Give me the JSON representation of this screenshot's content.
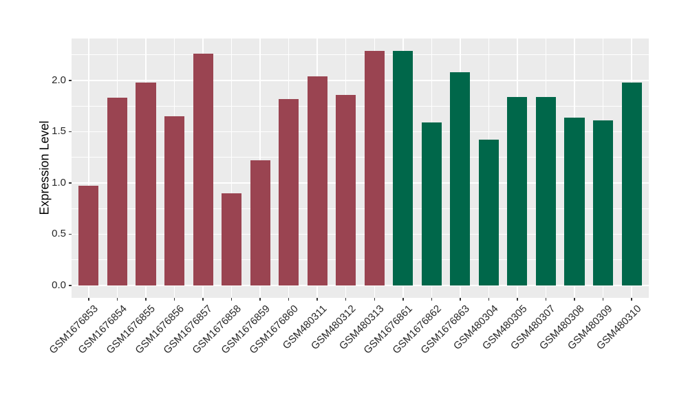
{
  "chart_data": {
    "type": "bar",
    "title": "",
    "xlabel": "",
    "ylabel": "Expression Level",
    "categories": [
      "GSM1676853",
      "GSM1676854",
      "GSM1676855",
      "GSM1676856",
      "GSM1676857",
      "GSM1676858",
      "GSM1676859",
      "GSM1676860",
      "GSM480311",
      "GSM480312",
      "GSM480313",
      "GSM1676861",
      "GSM1676862",
      "GSM1676863",
      "GSM480304",
      "GSM480305",
      "GSM480307",
      "GSM480308",
      "GSM480309",
      "GSM480310"
    ],
    "values": [
      0.97,
      1.83,
      1.98,
      1.65,
      2.26,
      0.9,
      1.22,
      1.82,
      2.04,
      1.86,
      2.29,
      2.29,
      1.59,
      2.08,
      1.42,
      1.84,
      1.84,
      1.64,
      1.61,
      1.98
    ],
    "bar_colors": [
      "#9A4451",
      "#9A4451",
      "#9A4451",
      "#9A4451",
      "#9A4451",
      "#9A4451",
      "#9A4451",
      "#9A4451",
      "#9A4451",
      "#9A4451",
      "#9A4451",
      "#00674A",
      "#00674A",
      "#00674A",
      "#00674A",
      "#00674A",
      "#00674A",
      "#00674A",
      "#00674A",
      "#00674A"
    ],
    "group_colors": {
      "group_1_color": "#9A4451",
      "group_2_color": "#00674A"
    },
    "yticks": [
      {
        "label": "0.0",
        "value": 0.0
      },
      {
        "label": "0.5",
        "value": 0.5
      },
      {
        "label": "1.0",
        "value": 1.0
      },
      {
        "label": "1.5",
        "value": 1.5
      },
      {
        "label": "2.0",
        "value": 2.0
      }
    ],
    "minor_gridline_values": [
      0.25,
      0.75,
      1.25,
      1.75,
      2.25
    ],
    "ylim": [
      -0.121,
      2.409
    ],
    "grid": true,
    "legend_position": "none",
    "panel_background": "#EBEBEB",
    "gridline_color": "#FFFFFF",
    "axis_text_color": "#262626",
    "bar_width_fraction": 0.7
  }
}
